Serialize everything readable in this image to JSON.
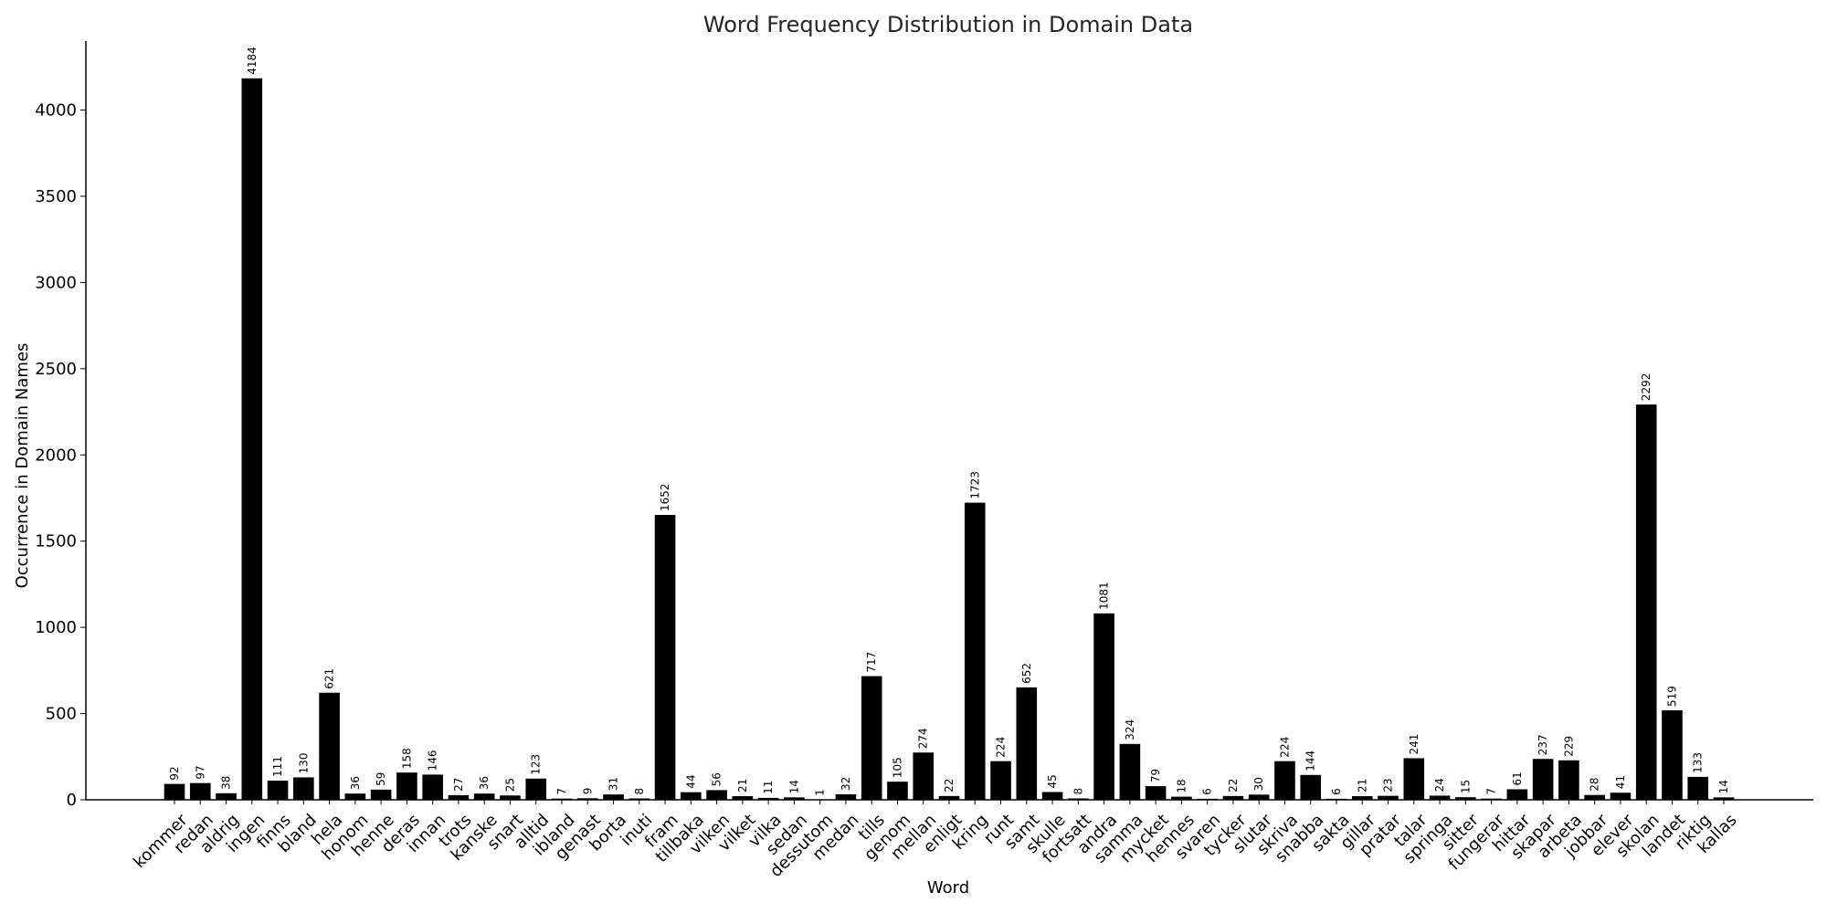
{
  "chart_data": {
    "type": "bar",
    "title": "Word Frequency Distribution in Domain Data",
    "xlabel": "Word",
    "ylabel": "Occurrence in Domain Names",
    "ylim": [
      0,
      4400
    ],
    "yticks": [
      0,
      500,
      1000,
      1500,
      2000,
      2500,
      3000,
      3500,
      4000
    ],
    "grid": false,
    "bar_color": "#000000",
    "categories": [
      "kommer",
      "redan",
      "aldrig",
      "ingen",
      "finns",
      "bland",
      "hela",
      "honom",
      "henne",
      "deras",
      "innan",
      "trots",
      "kanske",
      "snart",
      "alltid",
      "ibland",
      "genast",
      "borta",
      "inuti",
      "fram",
      "tillbaka",
      "vilken",
      "vilket",
      "vilka",
      "sedan",
      "dessutom",
      "medan",
      "tills",
      "genom",
      "mellan",
      "enligt",
      "kring",
      "runt",
      "samt",
      "skulle",
      "fortsatt",
      "andra",
      "samma",
      "mycket",
      "hennes",
      "svaren",
      "tycker",
      "slutar",
      "skriva",
      "snabba",
      "sakta",
      "gillar",
      "pratar",
      "talar",
      "springa",
      "sitter",
      "fungerar",
      "hittar",
      "skapar",
      "arbeta",
      "jobbar",
      "elever",
      "skolan",
      "landet",
      "riktig",
      "kallas"
    ],
    "values": [
      92,
      97,
      38,
      4184,
      111,
      130,
      621,
      36,
      59,
      158,
      146,
      27,
      36,
      25,
      123,
      7,
      9,
      31,
      8,
      1652,
      44,
      56,
      21,
      11,
      14,
      1,
      32,
      717,
      105,
      274,
      22,
      1723,
      224,
      652,
      45,
      8,
      1081,
      324,
      79,
      18,
      6,
      22,
      30,
      224,
      144,
      6,
      21,
      23,
      241,
      24,
      15,
      7,
      61,
      237,
      229,
      28,
      41,
      2292,
      519,
      133,
      14
    ]
  }
}
